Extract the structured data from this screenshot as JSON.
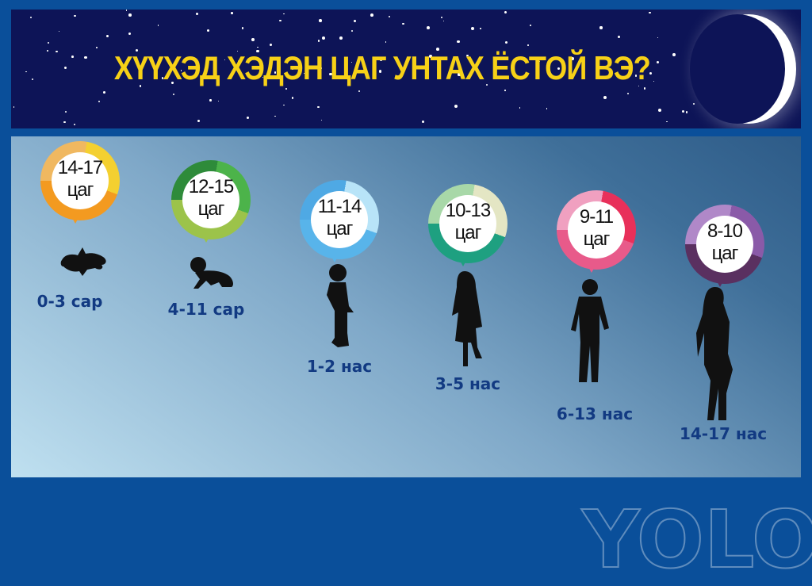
{
  "title": "ХҮҮХЭД ХЭДЭН ЦАГ УНТАХ ЁСТОЙ ВЭ?",
  "watermark": "YOLO",
  "groups": [
    {
      "hours": "14-17",
      "unit": "цаг",
      "age": "0-3 сар",
      "figure": "newborn-silhouette",
      "colors": [
        "#f0b860",
        "#f4d030",
        "#f39a20"
      ]
    },
    {
      "hours": "12-15",
      "unit": "цаг",
      "age": "4-11 сар",
      "figure": "crawling-baby-silhouette",
      "colors": [
        "#2e8b3a",
        "#4cb34a",
        "#9cc34a"
      ]
    },
    {
      "hours": "11-14",
      "unit": "цаг",
      "age": "1-2 нас",
      "figure": "toddler-silhouette",
      "colors": [
        "#4fa9e4",
        "#b8e4f8",
        "#58b4ea"
      ]
    },
    {
      "hours": "10-13",
      "unit": "цаг",
      "age": "3-5 нас",
      "figure": "girl-silhouette",
      "colors": [
        "#a8d8a8",
        "#e4e6c4",
        "#1ea080"
      ]
    },
    {
      "hours": "9-11",
      "unit": "цаг",
      "age": "6-13 нас",
      "figure": "boy-silhouette",
      "colors": [
        "#f0a0c0",
        "#e8305a",
        "#e85a8a"
      ]
    },
    {
      "hours": "8-10",
      "unit": "цаг",
      "age": "14-17 нас",
      "figure": "teen-silhouette",
      "colors": [
        "#b088c8",
        "#8a5aa8",
        "#5a3060"
      ]
    }
  ]
}
